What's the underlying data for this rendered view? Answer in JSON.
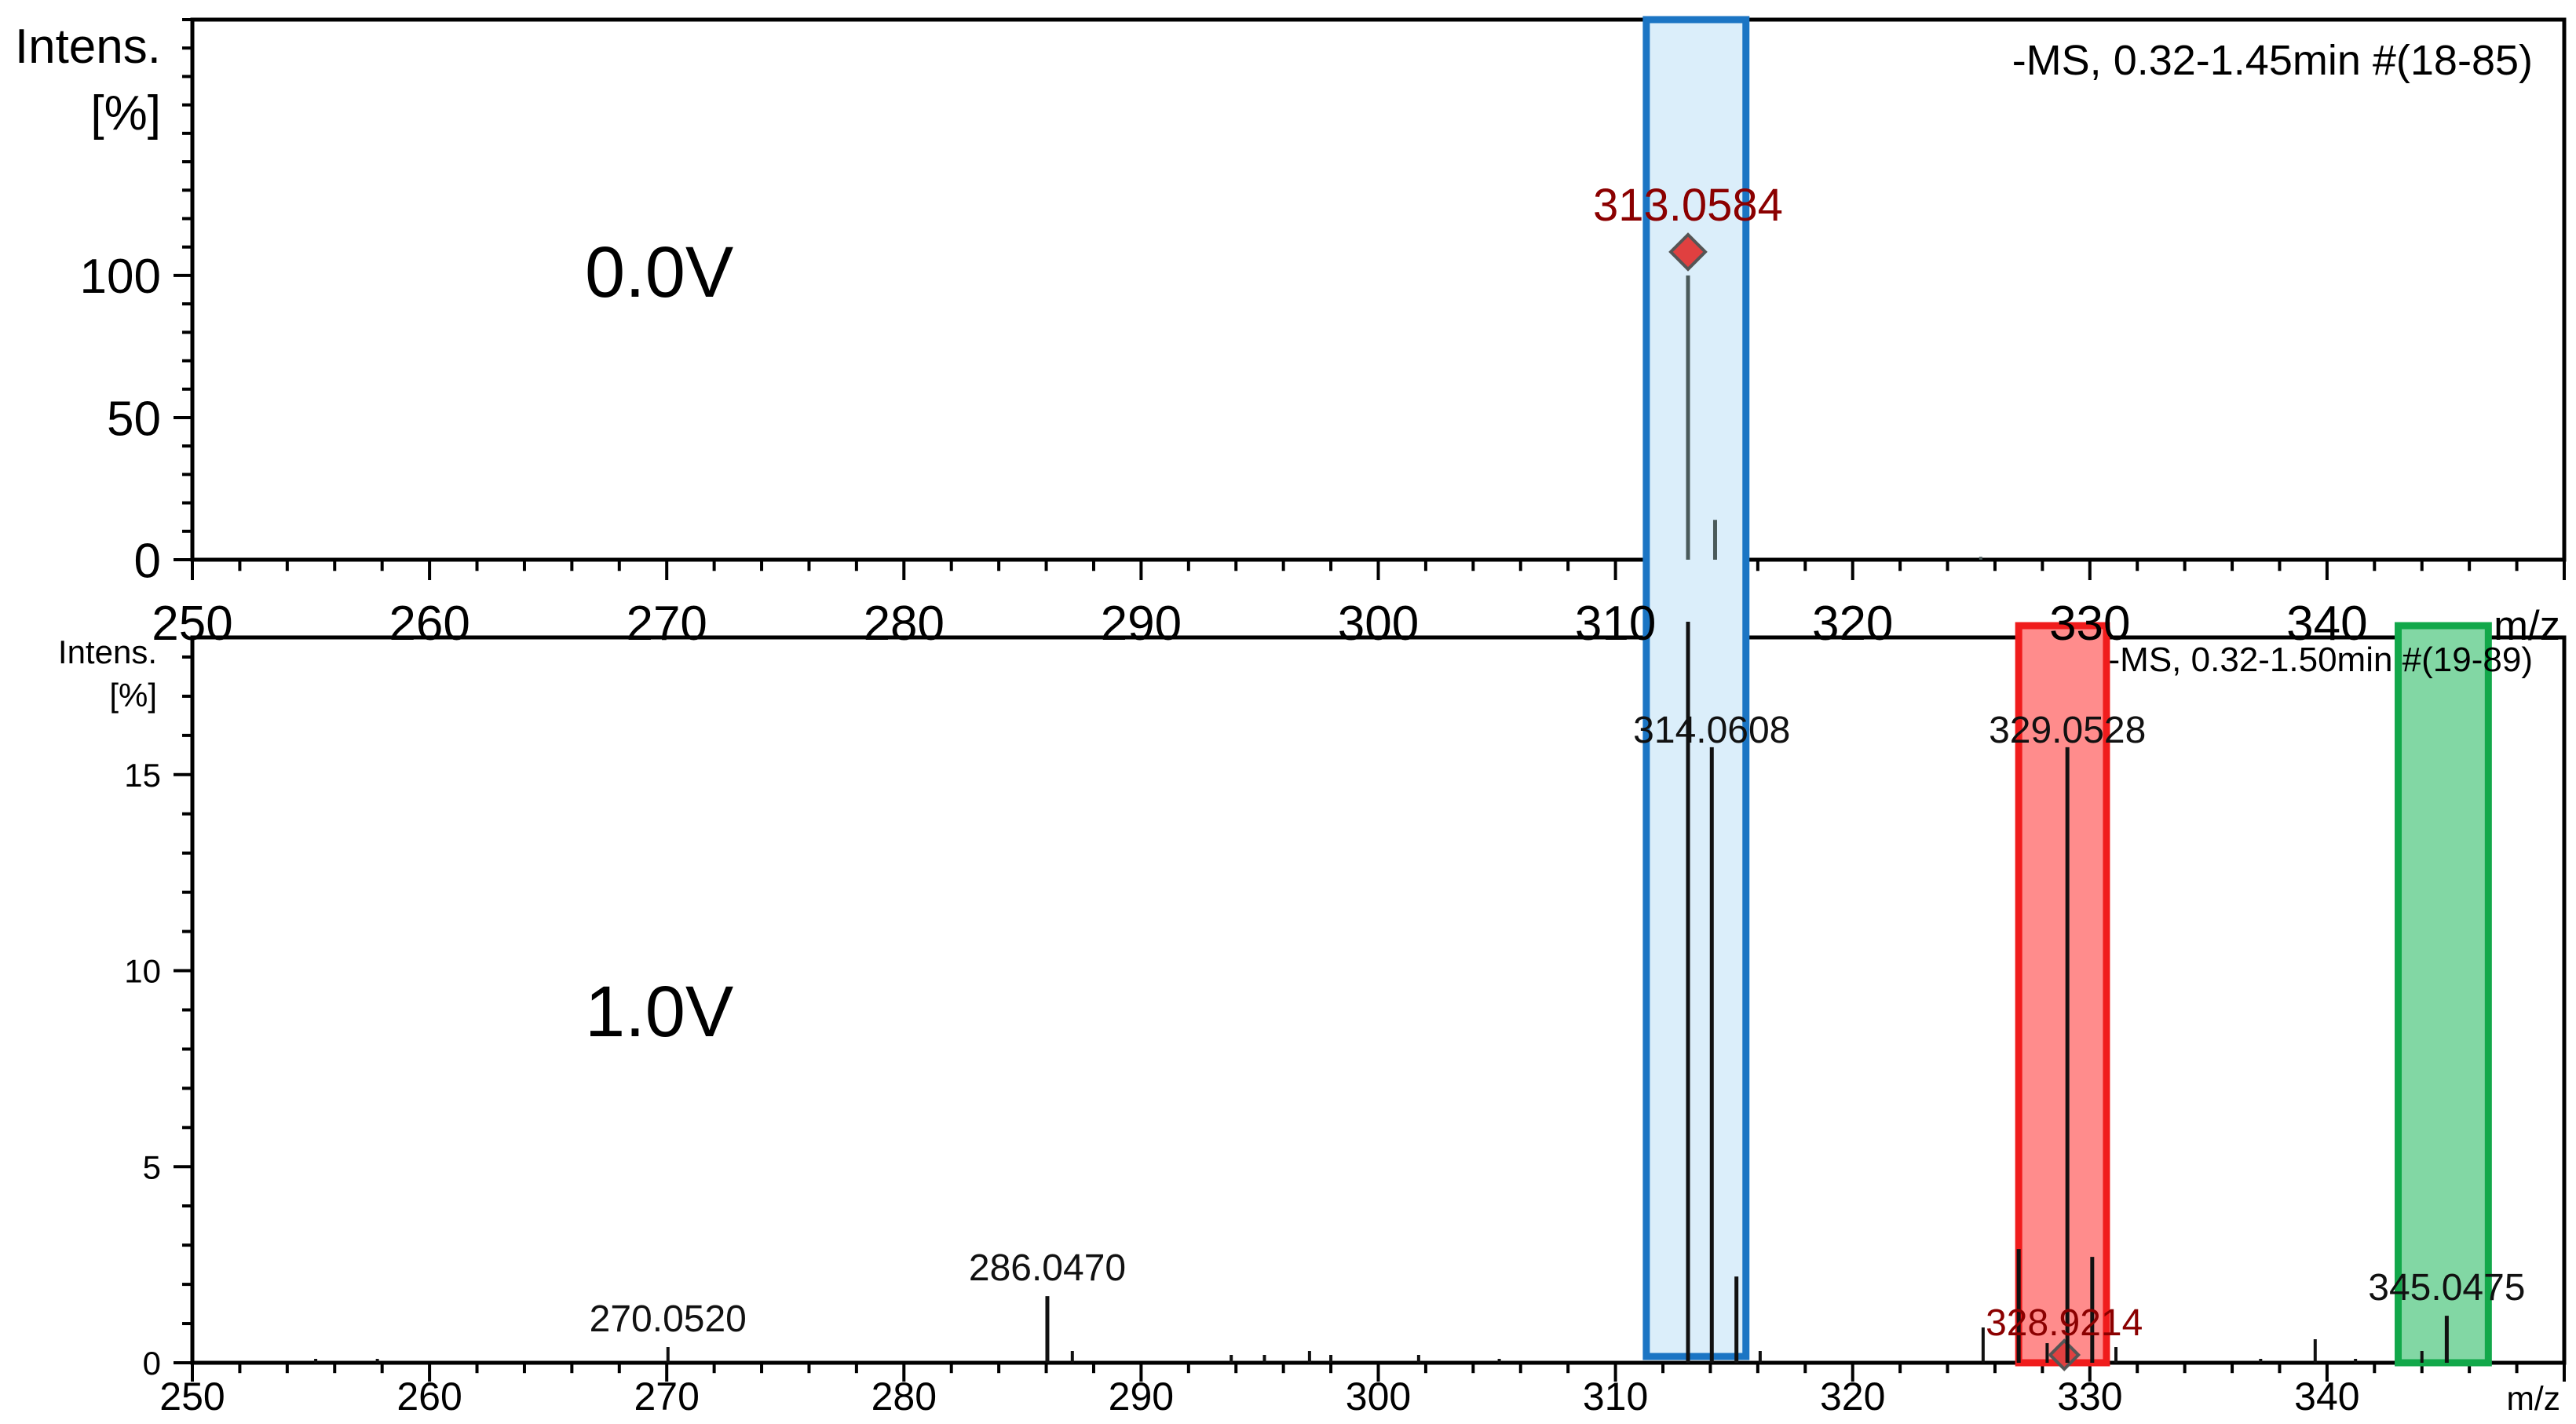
{
  "chart_data": [
    {
      "type": "bar",
      "panel": "top",
      "label": "0.0V",
      "info": "-MS, 0.32-1.45min #(18-85)",
      "ylabel": [
        "Intens.",
        "[%]"
      ],
      "xlabel": "m/z",
      "xlim": [
        250,
        350
      ],
      "ylim": [
        0,
        190
      ],
      "x_ticks": [
        250,
        260,
        270,
        280,
        290,
        300,
        310,
        320,
        330,
        340
      ],
      "y_ticks": [
        0,
        50,
        100
      ],
      "peaks": [
        {
          "mz": 313.0584,
          "value": 100,
          "label": "313.0584",
          "marker": true
        },
        {
          "mz": 314.2,
          "value": 14
        },
        {
          "mz": 325.4,
          "value": 1
        }
      ],
      "colors": {
        "label": "#8b0000",
        "marker": "#e04040",
        "stick": "#4a5a5a"
      }
    },
    {
      "type": "bar",
      "panel": "bottom",
      "label": "1.0V",
      "info": "-MS, 0.32-1.50min #(19-89)",
      "ylabel": [
        "Intens.",
        "[%]"
      ],
      "xlabel": "m/z",
      "xlim": [
        250,
        350
      ],
      "ylim": [
        0,
        18.5
      ],
      "x_ticks": [
        250,
        260,
        270,
        280,
        290,
        300,
        310,
        320,
        330,
        340
      ],
      "y_ticks": [
        0,
        5,
        10,
        15
      ],
      "peaks": [
        {
          "mz": 255.2,
          "value": 0.1
        },
        {
          "mz": 257.8,
          "value": 0.1
        },
        {
          "mz": 270.052,
          "value": 0.4,
          "label": "270.0520"
        },
        {
          "mz": 286.047,
          "value": 1.7,
          "label": "286.0470"
        },
        {
          "mz": 287.1,
          "value": 0.3
        },
        {
          "mz": 293.8,
          "value": 0.2
        },
        {
          "mz": 295.2,
          "value": 0.2
        },
        {
          "mz": 297.1,
          "value": 0.3
        },
        {
          "mz": 298.0,
          "value": 0.2
        },
        {
          "mz": 301.7,
          "value": 0.2
        },
        {
          "mz": 305.1,
          "value": 0.1
        },
        {
          "mz": 313.0584,
          "value": 100
        },
        {
          "mz": 314.0608,
          "value": 15.7,
          "label": "314.0608"
        },
        {
          "mz": 315.1,
          "value": 2.2
        },
        {
          "mz": 316.1,
          "value": 0.3
        },
        {
          "mz": 325.5,
          "value": 0.9
        },
        {
          "mz": 327.0,
          "value": 2.9
        },
        {
          "mz": 328.2,
          "value": 0.5
        },
        {
          "mz": 328.9214,
          "value": 0.4,
          "label": "328.9214",
          "marker": true
        },
        {
          "mz": 329.0528,
          "value": 15.7,
          "label": "329.0528"
        },
        {
          "mz": 330.1,
          "value": 2.7
        },
        {
          "mz": 331.1,
          "value": 0.4
        },
        {
          "mz": 337.2,
          "value": 0.1
        },
        {
          "mz": 339.5,
          "value": 0.6
        },
        {
          "mz": 341.2,
          "value": 0.1
        },
        {
          "mz": 344.0,
          "value": 0.3
        },
        {
          "mz": 345.0475,
          "value": 1.2,
          "label": "345.0475"
        }
      ],
      "colors": {
        "label": "#111111",
        "marker_label": "#8b0000",
        "marker": "#e04040",
        "stick": "#111111"
      }
    }
  ],
  "highlights": [
    {
      "name": "highlight-313",
      "mz_range": [
        311.3,
        315.5
      ],
      "color": "#1b75c4",
      "fill": "#dbeefa"
    },
    {
      "name": "highlight-329",
      "mz_range": [
        327.0,
        330.7
      ],
      "color": "#f01c1c",
      "fill": "#ff8c8c"
    },
    {
      "name": "highlight-345",
      "mz_range": [
        343.0,
        346.8
      ],
      "color": "#12a84a",
      "fill": "#82d7a4"
    }
  ]
}
